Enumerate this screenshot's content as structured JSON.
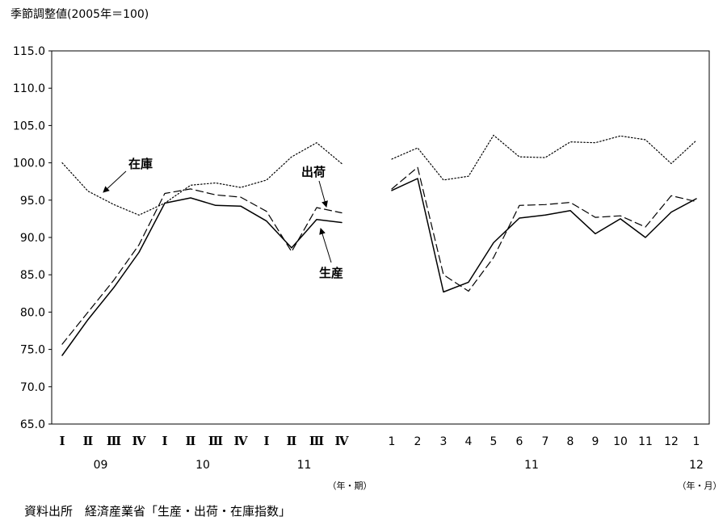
{
  "chart_data": {
    "type": "line",
    "title": "季節調整値(2005年＝100)",
    "ylim": [
      65,
      115
    ],
    "y_ticks": [
      "65.0",
      "70.0",
      "75.0",
      "80.0",
      "85.0",
      "90.0",
      "95.0",
      "100.0",
      "105.0",
      "110.0",
      "115.0"
    ],
    "grid": false,
    "legend": "inline-annotations",
    "source": "資料出所　経済産業省「生産・出荷・在庫指数」",
    "panels": [
      {
        "name": "quarterly",
        "categories": [
          "Ⅰ",
          "Ⅱ",
          "Ⅲ",
          "Ⅳ",
          "Ⅰ",
          "Ⅱ",
          "Ⅲ",
          "Ⅳ",
          "Ⅰ",
          "Ⅱ",
          "Ⅲ",
          "Ⅳ"
        ],
        "year_labels": [
          {
            "label": "09",
            "start": 0,
            "end": 3
          },
          {
            "label": "10",
            "start": 4,
            "end": 7
          },
          {
            "label": "11",
            "start": 8,
            "end": 11
          }
        ],
        "unit_label": "（年・期）",
        "series": [
          {
            "name": "生産",
            "style": "solid",
            "values": [
              74.2,
              79.0,
              83.3,
              88.0,
              94.6,
              95.3,
              94.3,
              94.2,
              92.2,
              88.6,
              92.4,
              92.0
            ]
          },
          {
            "name": "出荷",
            "style": "dashed",
            "values": [
              75.7,
              80.0,
              84.3,
              89.0,
              95.9,
              96.5,
              95.7,
              95.4,
              93.5,
              88.1,
              94.0,
              93.3
            ]
          },
          {
            "name": "在庫",
            "style": "dotted",
            "values": [
              100.0,
              96.2,
              94.4,
              93.0,
              94.6,
              97.0,
              97.3,
              96.7,
              97.7,
              100.8,
              102.7,
              99.9
            ]
          }
        ]
      },
      {
        "name": "monthly",
        "categories": [
          "1",
          "2",
          "3",
          "4",
          "5",
          "6",
          "7",
          "8",
          "9",
          "10",
          "11",
          "12",
          "1"
        ],
        "year_labels": [
          {
            "label": "11",
            "start": 0,
            "end": 11
          },
          {
            "label": "12",
            "start": 12,
            "end": 12
          }
        ],
        "unit_label": "（年・月）",
        "series": [
          {
            "name": "生産",
            "style": "solid",
            "values": [
              96.3,
              97.9,
              82.7,
              84.0,
              89.3,
              92.6,
              93.0,
              93.6,
              90.5,
              92.5,
              90.0,
              93.4,
              95.2
            ]
          },
          {
            "name": "出荷",
            "style": "dashed",
            "values": [
              96.5,
              99.4,
              85.0,
              82.8,
              87.3,
              94.3,
              94.4,
              94.7,
              92.7,
              92.9,
              91.4,
              95.6,
              94.8
            ]
          },
          {
            "name": "在庫",
            "style": "dotted",
            "values": [
              100.5,
              102.0,
              97.7,
              98.2,
              103.7,
              100.8,
              100.7,
              102.8,
              102.7,
              103.6,
              103.1,
              99.9,
              103.0
            ]
          }
        ]
      }
    ],
    "annotations": [
      {
        "text": "在庫",
        "series": "在庫"
      },
      {
        "text": "出荷",
        "series": "出荷"
      },
      {
        "text": "生産",
        "series": "生産"
      }
    ]
  }
}
